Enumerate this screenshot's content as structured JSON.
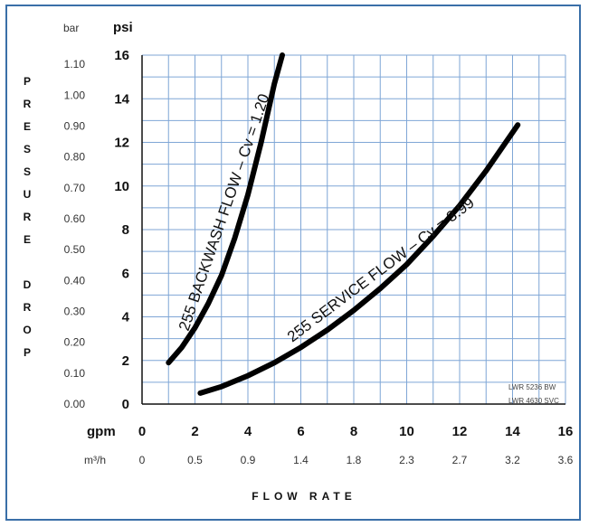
{
  "chart_data": {
    "type": "line",
    "xlabel": "FLOW RATE",
    "ylabel": "PRESSURE DROP",
    "x_unit_primary": "gpm",
    "x_unit_secondary": "m³/h",
    "y_unit_primary": "psi",
    "y_unit_secondary": "bar",
    "xlim": [
      0,
      16
    ],
    "ylim": [
      0,
      16
    ],
    "x_ticks": [
      "0",
      "2",
      "4",
      "6",
      "8",
      "10",
      "12",
      "14",
      "16"
    ],
    "x_ticks_secondary": [
      "0",
      "0.5",
      "0.9",
      "1.4",
      "1.8",
      "2.3",
      "2.7",
      "3.2",
      "3.6"
    ],
    "y_ticks": [
      "0",
      "2",
      "4",
      "6",
      "8",
      "10",
      "12",
      "14",
      "16"
    ],
    "y_ticks_secondary": [
      "0.00",
      "0.10",
      "0.20",
      "0.30",
      "0.40",
      "0.50",
      "0.60",
      "0.70",
      "0.80",
      "0.90",
      "1.00",
      "1.10"
    ],
    "grid": true,
    "series": [
      {
        "name": "255 BACKWASH FLOW – Cv = 1.20",
        "cv": 1.2,
        "x": [
          1.0,
          1.5,
          2.0,
          2.5,
          3.0,
          3.5,
          4.0,
          4.5,
          5.0,
          5.3
        ],
        "y": [
          1.9,
          2.6,
          3.5,
          4.6,
          5.9,
          7.6,
          9.6,
          12.0,
          14.7,
          16.0
        ]
      },
      {
        "name": "255 SERVICE FLOW – Cv = 3.99",
        "cv": 3.99,
        "x": [
          2.2,
          3.0,
          4.0,
          5.0,
          6.0,
          7.0,
          8.0,
          9.0,
          10.0,
          11.0,
          12.0,
          13.0,
          14.2
        ],
        "y": [
          0.5,
          0.8,
          1.3,
          1.9,
          2.6,
          3.4,
          4.3,
          5.3,
          6.4,
          7.7,
          9.1,
          10.7,
          12.8
        ]
      }
    ],
    "annotations": [
      "LWR 5236 BW",
      "LWR 4630 SVC"
    ]
  },
  "y_axis_letters": [
    "P",
    "R",
    "E",
    "S",
    "S",
    "U",
    "R",
    "E",
    "",
    "D",
    "R",
    "O",
    "P"
  ]
}
